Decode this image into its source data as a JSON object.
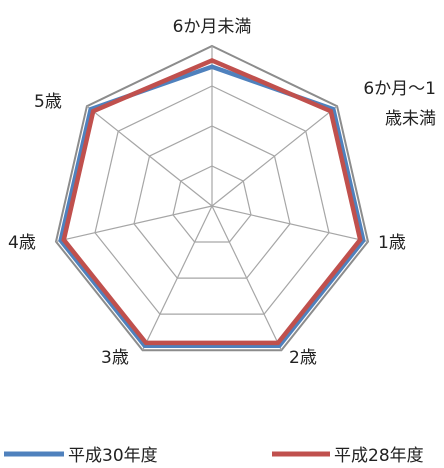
{
  "chart_data": {
    "type": "radar",
    "categories": [
      [
        "6か月未満"
      ],
      [
        "6か月～1",
        "歳未満"
      ],
      [
        "1歳"
      ],
      [
        "2歳"
      ],
      [
        "3歳"
      ],
      [
        "4歳"
      ],
      [
        "5歳"
      ]
    ],
    "series": [
      {
        "name": "平成30年度",
        "color": "#4F81BD",
        "values": [
          0.87,
          0.97,
          0.97,
          0.97,
          0.97,
          0.97,
          0.97
        ]
      },
      {
        "name": "平成28年度",
        "color": "#C0504D",
        "values": [
          0.91,
          0.95,
          0.95,
          0.95,
          0.95,
          0.95,
          0.95
        ]
      }
    ],
    "rlim": [
      0,
      1
    ],
    "rings": 4,
    "legend": "bottom",
    "grid": true,
    "grid_color": "#A6A6A6",
    "outer_ring_color": "#8C8C8C"
  }
}
